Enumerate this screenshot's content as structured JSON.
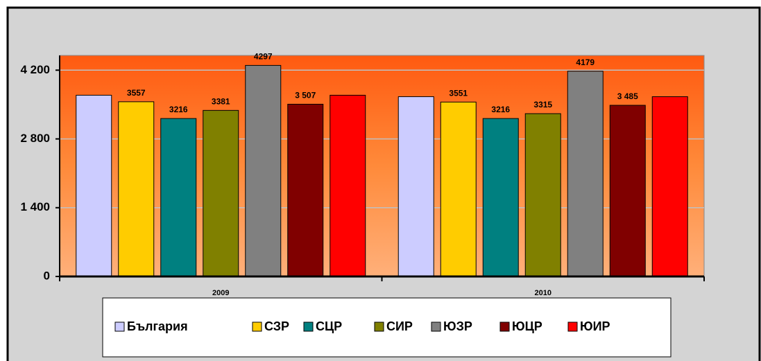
{
  "chart_data": {
    "type": "bar",
    "categories": [
      "2009",
      "2010"
    ],
    "series": [
      {
        "name": "България",
        "color": "#ccccff",
        "values": [
          3690,
          3660
        ],
        "value_labels": [
          null,
          null
        ]
      },
      {
        "name": "СЗР",
        "color": "#ffcc00",
        "values": [
          3557,
          3551
        ],
        "value_labels": [
          "3557",
          "3551"
        ]
      },
      {
        "name": "СЦР",
        "color": "#008080",
        "values": [
          3216,
          3216
        ],
        "value_labels": [
          "3216",
          "3216"
        ]
      },
      {
        "name": "СИР",
        "color": "#808000",
        "values": [
          3381,
          3315
        ],
        "value_labels": [
          "3381",
          "3315"
        ]
      },
      {
        "name": "ЮЗР",
        "color": "#808080",
        "values": [
          4297,
          4179
        ],
        "value_labels": [
          "4297",
          "4179"
        ]
      },
      {
        "name": "ЮЦР",
        "color": "#800000",
        "values": [
          3507,
          3485
        ],
        "value_labels": [
          "3 507",
          "3 485"
        ]
      },
      {
        "name": "ЮИР",
        "color": "#ff0000",
        "values": [
          3690,
          3660
        ],
        "value_labels": [
          null,
          null
        ]
      }
    ],
    "ylim": [
      0,
      4500
    ],
    "yticks": [
      0,
      {
        "value": 1400,
        "label": "1 400"
      },
      {
        "value": 2800,
        "label": "2 800"
      },
      {
        "value": 4200,
        "label": "4 200"
      }
    ],
    "grid": true,
    "legend": "bottom"
  }
}
